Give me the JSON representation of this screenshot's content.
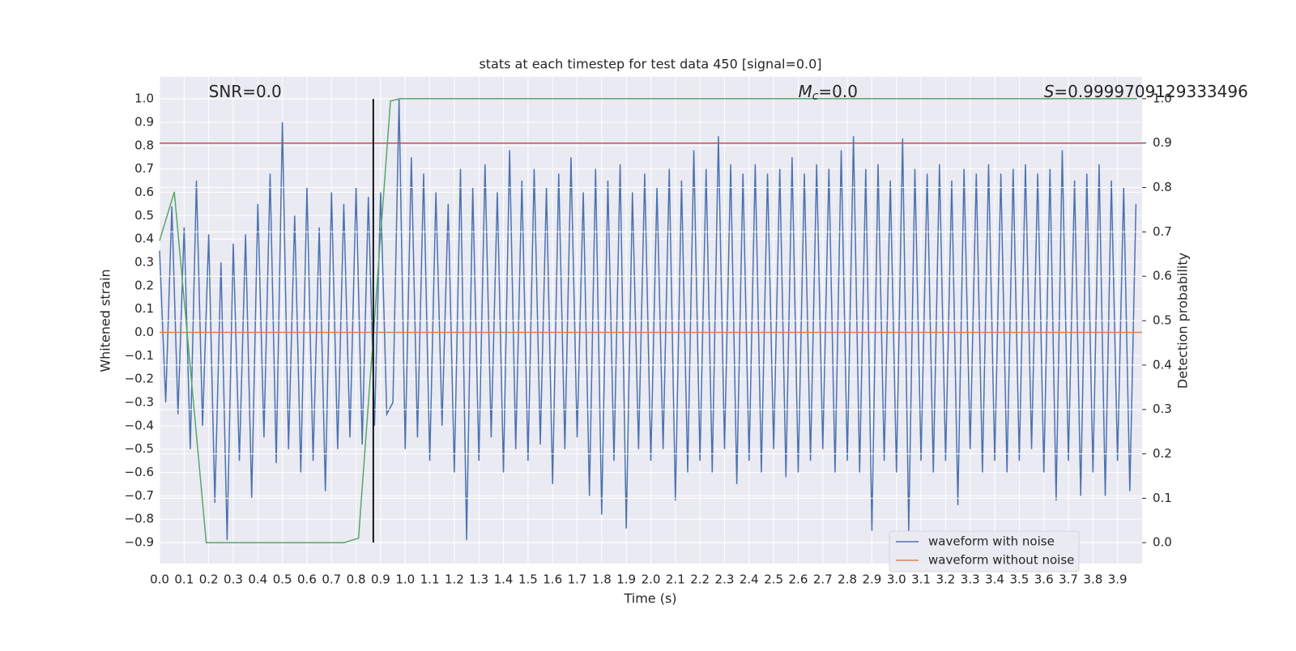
{
  "chart_data": {
    "type": "line",
    "title": "stats at each timestep for test data 450 [signal=0.0]",
    "xlabel": "Time (s)",
    "ylabel": "Whitened strain",
    "y2label": "Detection probability",
    "xlim": [
      0,
      4.0
    ],
    "ylim": [
      -0.99,
      1.094
    ],
    "y2lim": [
      -0.047,
      1.049
    ],
    "grid": true,
    "legend": "lower right",
    "xticks": [
      {
        "value": 0,
        "label": "0.0"
      },
      0.1,
      0.2,
      0.3,
      0.4,
      0.5,
      0.6,
      0.7,
      0.8,
      0.9,
      {
        "value": 1,
        "label": "1.0"
      },
      1.1,
      1.2,
      1.3,
      1.4,
      1.5,
      1.6,
      1.7,
      1.8,
      1.9,
      {
        "value": 2,
        "label": "2.0"
      },
      2.1,
      2.2,
      2.3,
      2.4,
      2.5,
      2.6,
      2.7,
      2.8,
      2.9,
      {
        "value": 3,
        "label": "3.0"
      },
      3.1,
      3.2,
      3.3,
      3.4,
      3.5,
      3.6,
      3.7,
      3.8,
      3.9
    ],
    "yticks": [
      {
        "value": -0.9,
        "label": "−0.9"
      },
      {
        "value": -0.8,
        "label": "−0.8"
      },
      {
        "value": -0.7,
        "label": "−0.7"
      },
      {
        "value": -0.6,
        "label": "−0.6"
      },
      {
        "value": -0.5,
        "label": "−0.5"
      },
      {
        "value": -0.4,
        "label": "−0.4"
      },
      {
        "value": -0.3,
        "label": "−0.3"
      },
      {
        "value": -0.2,
        "label": "−0.2"
      },
      {
        "value": -0.1,
        "label": "−0.1"
      },
      {
        "value": 0,
        "label": "0.0"
      },
      0.1,
      0.2,
      0.3,
      0.4,
      0.5,
      0.6,
      0.7,
      0.8,
      0.9,
      {
        "value": 1,
        "label": "1.0"
      }
    ],
    "y2ticks": [
      {
        "value": 0,
        "label": "0.0"
      },
      0.1,
      0.2,
      0.3,
      0.4,
      0.5,
      0.6,
      0.7,
      0.8,
      0.9,
      {
        "value": 1,
        "label": "1.0"
      }
    ],
    "series": [
      {
        "name": "waveform with noise",
        "color": "#4c72b0",
        "x": [
          0,
          0.025,
          0.05,
          0.075,
          0.1,
          0.125,
          0.15,
          0.175,
          0.2,
          0.225,
          0.25,
          0.275,
          0.3,
          0.325,
          0.35,
          0.375,
          0.4,
          0.425,
          0.45,
          0.475,
          0.5,
          0.525,
          0.55,
          0.575,
          0.6,
          0.625,
          0.65,
          0.675,
          0.7,
          0.725,
          0.75,
          0.775,
          0.8,
          0.825,
          0.85,
          0.875,
          0.9,
          0.925,
          0.95,
          0.975,
          1,
          1.025,
          1.05,
          1.075,
          1.1,
          1.125,
          1.15,
          1.175,
          1.2,
          1.225,
          1.25,
          1.275,
          1.3,
          1.325,
          1.35,
          1.375,
          1.4,
          1.425,
          1.45,
          1.475,
          1.5,
          1.525,
          1.55,
          1.575,
          1.6,
          1.625,
          1.65,
          1.675,
          1.7,
          1.725,
          1.75,
          1.775,
          1.8,
          1.825,
          1.85,
          1.875,
          1.9,
          1.925,
          1.95,
          1.975,
          2,
          2.025,
          2.05,
          2.075,
          2.1,
          2.125,
          2.15,
          2.175,
          2.2,
          2.225,
          2.25,
          2.275,
          2.3,
          2.325,
          2.35,
          2.375,
          2.4,
          2.425,
          2.45,
          2.475,
          2.5,
          2.525,
          2.55,
          2.575,
          2.6,
          2.625,
          2.65,
          2.675,
          2.7,
          2.725,
          2.75,
          2.775,
          2.8,
          2.825,
          2.85,
          2.875,
          2.9,
          2.925,
          2.95,
          2.975,
          3,
          3.025,
          3.05,
          3.075,
          3.1,
          3.125,
          3.15,
          3.175,
          3.2,
          3.225,
          3.25,
          3.275,
          3.3,
          3.325,
          3.35,
          3.375,
          3.4,
          3.425,
          3.45,
          3.475,
          3.5,
          3.525,
          3.55,
          3.575,
          3.6,
          3.625,
          3.65,
          3.675,
          3.7,
          3.725,
          3.75,
          3.775,
          3.8,
          3.825,
          3.85,
          3.875,
          3.9,
          3.925,
          3.95,
          3.975
        ],
        "values": [
          0.35,
          -0.3,
          0.54,
          -0.35,
          0.45,
          -0.5,
          0.65,
          -0.4,
          0.42,
          -0.73,
          0.3,
          -0.89,
          0.38,
          -0.55,
          0.42,
          -0.71,
          0.55,
          -0.45,
          0.68,
          -0.56,
          0.9,
          -0.5,
          0.5,
          -0.6,
          0.62,
          -0.55,
          0.45,
          -0.68,
          0.6,
          -0.5,
          0.55,
          -0.45,
          0.62,
          -0.48,
          0.58,
          -0.4,
          0.6,
          -0.35,
          -0.3,
          1.0,
          -0.5,
          0.75,
          -0.45,
          0.68,
          -0.55,
          0.6,
          -0.4,
          0.55,
          -0.6,
          0.7,
          -0.89,
          0.62,
          -0.55,
          0.72,
          -0.45,
          0.6,
          -0.6,
          0.78,
          -0.5,
          0.65,
          -0.55,
          0.7,
          -0.48,
          0.62,
          -0.65,
          0.68,
          -0.5,
          0.75,
          -0.45,
          0.6,
          -0.7,
          0.7,
          -0.78,
          0.65,
          -0.55,
          0.72,
          -0.84,
          0.6,
          -0.5,
          0.68,
          -0.55,
          0.62,
          -0.5,
          0.7,
          -0.72,
          0.65,
          -0.6,
          0.78,
          -0.55,
          0.7,
          -0.6,
          0.84,
          -0.5,
          0.72,
          -0.65,
          0.68,
          -0.55,
          0.72,
          -0.6,
          0.68,
          -0.5,
          0.7,
          -0.62,
          0.75,
          -0.6,
          0.68,
          -0.55,
          0.72,
          -0.5,
          0.7,
          -0.6,
          0.78,
          -0.55,
          0.84,
          -0.6,
          0.7,
          -0.85,
          0.72,
          -0.55,
          0.65,
          -0.6,
          0.83,
          -0.85,
          0.7,
          -0.55,
          0.68,
          -0.6,
          0.72,
          -0.55,
          0.65,
          -0.74,
          0.7,
          -0.5,
          0.68,
          -0.6,
          0.72,
          -0.55,
          0.68,
          -0.6,
          0.7,
          -0.55,
          0.72,
          -0.5,
          0.68,
          -0.6,
          0.7,
          -0.72,
          0.78,
          -0.55,
          0.65,
          -0.7,
          0.68,
          -0.6,
          0.72,
          -0.7,
          0.65,
          -0.55,
          0.62,
          -0.68,
          0.55
        ]
      },
      {
        "name": "waveform without noise",
        "color": "#dd8452",
        "x": [
          0,
          4.0
        ],
        "values": [
          0,
          0
        ]
      }
    ],
    "y2_series": [
      {
        "color": "#55a868",
        "axis": "y2",
        "x": [
          0,
          0.06,
          0.19,
          0.22,
          0.75,
          0.81,
          0.94,
          0.98,
          3.98
        ],
        "values": [
          0.68,
          0.79,
          0.0,
          0.0,
          0.0,
          0.01,
          0.995,
          1.0,
          1.0
        ]
      }
    ],
    "threshold": {
      "value": 0.9,
      "axis": "y2",
      "color": "#c44e52"
    },
    "marker_line": {
      "x": 0.87,
      "y": [
        -0.9,
        1.0
      ],
      "color": "#000000"
    },
    "annotations": [
      {
        "x": 0.2,
        "y": 1.0,
        "text": "SNR=0.0"
      },
      {
        "x": 2.6,
        "y": 1.0,
        "symbol": "M",
        "subscript": "c",
        "text": "=0.0"
      },
      {
        "x": 3.6,
        "y": 1.0,
        "symbol": "S",
        "text": "=0.9999709129333496"
      }
    ]
  }
}
